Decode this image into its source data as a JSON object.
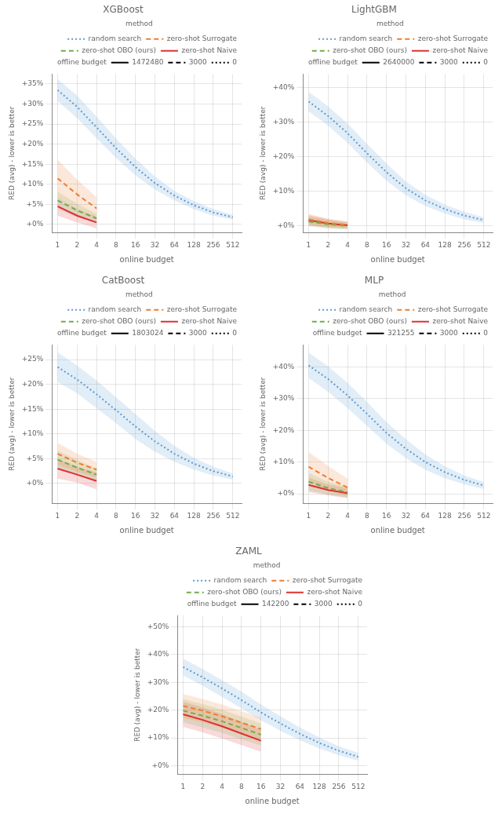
{
  "chart_data": [
    {
      "type": "line",
      "title": "XGBoost",
      "x_label": "online budget",
      "y_label": "RED (avg) - lower is better",
      "log": "x",
      "grid": true,
      "legend": "upper right",
      "legend_title": "method",
      "xlim": [
        0.82,
        700
      ],
      "xticks": [
        1,
        2,
        4,
        8,
        16,
        32,
        64,
        128,
        256,
        512
      ],
      "ylim": [
        -0.02,
        0.375
      ],
      "yticks": [
        {
          "value": 0.0,
          "label": "+0%"
        },
        {
          "value": 0.05,
          "label": "+5%"
        },
        {
          "value": 0.1,
          "label": "+10%"
        },
        {
          "value": 0.15,
          "label": "+15%"
        },
        {
          "value": 0.2,
          "label": "+20%"
        },
        {
          "value": 0.25,
          "label": "+25%"
        },
        {
          "value": 0.3,
          "label": "+30%"
        },
        {
          "value": 0.35,
          "label": "+35%"
        }
      ],
      "series": [
        {
          "name": "random search",
          "color": "#5b9bd5",
          "line_style": "dotted",
          "x": [
            1,
            2,
            4,
            8,
            16,
            32,
            64,
            128,
            256,
            512
          ],
          "values": [
            0.335,
            0.293,
            0.242,
            0.19,
            0.143,
            0.103,
            0.072,
            0.048,
            0.03,
            0.018
          ],
          "lo": [
            0.308,
            0.265,
            0.215,
            0.166,
            0.122,
            0.087,
            0.06,
            0.038,
            0.022,
            0.012
          ],
          "hi": [
            0.362,
            0.321,
            0.269,
            0.214,
            0.164,
            0.119,
            0.084,
            0.058,
            0.038,
            0.024
          ]
        },
        {
          "name": "zero-shot Surrogate",
          "color": "#ed7d31",
          "line_style": "dashed",
          "x": [
            1,
            2,
            4
          ],
          "values": [
            0.115,
            0.075,
            0.04
          ],
          "lo": [
            0.068,
            0.038,
            0.012
          ],
          "hi": [
            0.162,
            0.112,
            0.068
          ]
        },
        {
          "name": "zero-shot OBO (ours)",
          "color": "#70ad47",
          "line_style": "dashed",
          "x": [
            1,
            2,
            4
          ],
          "values": [
            0.06,
            0.035,
            0.015
          ],
          "lo": [
            0.038,
            0.018,
            0.003
          ],
          "hi": [
            0.082,
            0.052,
            0.027
          ]
        },
        {
          "name": "zero-shot Naive",
          "color": "#e03030",
          "line_style": "solid",
          "x": [
            1,
            2,
            4
          ],
          "values": [
            0.045,
            0.022,
            0.005
          ],
          "lo": [
            0.022,
            0.005,
            -0.01
          ],
          "hi": [
            0.068,
            0.039,
            0.02
          ]
        },
        {
          "name": "offline budget",
          "color": "none",
          "x": [],
          "values": []
        },
        {
          "name": "1472480",
          "color": "black",
          "line_style": "solid",
          "x": [],
          "values": []
        },
        {
          "name": "3000",
          "color": "black",
          "line_style": "dashed",
          "x": [],
          "values": []
        },
        {
          "name": "0",
          "color": "black",
          "line_style": "dotted",
          "x": [],
          "values": []
        }
      ]
    },
    {
      "type": "line",
      "title": "LightGBM",
      "x_label": "online budget",
      "y_label": "RED (avg) - lower is better",
      "log": "x",
      "grid": true,
      "legend": "upper right",
      "legend_title": "method",
      "xlim": [
        0.82,
        700
      ],
      "xticks": [
        1,
        2,
        4,
        8,
        16,
        32,
        64,
        128,
        256,
        512
      ],
      "ylim": [
        -0.02,
        0.44
      ],
      "yticks": [
        {
          "value": 0.0,
          "label": "+0%"
        },
        {
          "value": 0.1,
          "label": "+10%"
        },
        {
          "value": 0.2,
          "label": "+20%"
        },
        {
          "value": 0.3,
          "label": "+30%"
        },
        {
          "value": 0.4,
          "label": "+40%"
        }
      ],
      "series": [
        {
          "name": "random search",
          "color": "#5b9bd5",
          "line_style": "dotted",
          "x": [
            1,
            2,
            4,
            8,
            16,
            32,
            64,
            128,
            256,
            512
          ],
          "values": [
            0.36,
            0.318,
            0.268,
            0.21,
            0.155,
            0.108,
            0.073,
            0.048,
            0.029,
            0.016
          ],
          "lo": [
            0.332,
            0.29,
            0.24,
            0.183,
            0.13,
            0.088,
            0.057,
            0.035,
            0.018,
            0.008
          ],
          "hi": [
            0.388,
            0.346,
            0.296,
            0.237,
            0.18,
            0.128,
            0.089,
            0.061,
            0.04,
            0.024
          ]
        },
        {
          "name": "zero-shot Surrogate",
          "color": "#ed7d31",
          "line_style": "dashed",
          "x": [
            1,
            2,
            4
          ],
          "values": [
            0.018,
            0.008,
            0.002
          ],
          "lo": [
            0.002,
            -0.005,
            -0.008
          ],
          "hi": [
            0.034,
            0.021,
            0.012
          ]
        },
        {
          "name": "zero-shot OBO (ours)",
          "color": "#70ad47",
          "line_style": "dashed",
          "x": [
            1,
            2,
            4
          ],
          "values": [
            0.012,
            0.004,
            -0.001
          ],
          "lo": [
            -0.002,
            -0.009,
            -0.011
          ],
          "hi": [
            0.026,
            0.017,
            0.009
          ]
        },
        {
          "name": "zero-shot Naive",
          "color": "#e03030",
          "line_style": "solid",
          "x": [
            1,
            2,
            4
          ],
          "values": [
            0.016,
            0.006,
            0.001
          ],
          "lo": [
            0.001,
            -0.006,
            -0.009
          ],
          "hi": [
            0.031,
            0.018,
            0.011
          ]
        },
        {
          "name": "offline budget",
          "color": "none",
          "x": [],
          "values": []
        },
        {
          "name": "2640000",
          "color": "black",
          "line_style": "solid",
          "x": [],
          "values": []
        },
        {
          "name": "3000",
          "color": "black",
          "line_style": "dashed",
          "x": [],
          "values": []
        },
        {
          "name": "0",
          "color": "black",
          "line_style": "dotted",
          "x": [],
          "values": []
        }
      ]
    },
    {
      "type": "line",
      "title": "CatBoost",
      "x_label": "online budget",
      "y_label": "RED (avg) - lower is better",
      "log": "x",
      "grid": true,
      "legend": "upper right",
      "legend_title": "method",
      "xlim": [
        0.82,
        700
      ],
      "xticks": [
        1,
        2,
        4,
        8,
        16,
        32,
        64,
        128,
        256,
        512
      ],
      "ylim": [
        -0.04,
        0.28
      ],
      "yticks": [
        {
          "value": 0.0,
          "label": "+0%"
        },
        {
          "value": 0.05,
          "label": "+5%"
        },
        {
          "value": 0.1,
          "label": "+10%"
        },
        {
          "value": 0.15,
          "label": "+15%"
        },
        {
          "value": 0.2,
          "label": "+20%"
        },
        {
          "value": 0.25,
          "label": "+25%"
        }
      ],
      "series": [
        {
          "name": "random search",
          "color": "#5b9bd5",
          "line_style": "dotted",
          "x": [
            1,
            2,
            4,
            8,
            16,
            32,
            64,
            128,
            256,
            512
          ],
          "values": [
            0.235,
            0.21,
            0.18,
            0.148,
            0.115,
            0.085,
            0.06,
            0.04,
            0.025,
            0.014
          ],
          "lo": [
            0.205,
            0.182,
            0.152,
            0.122,
            0.09,
            0.064,
            0.044,
            0.028,
            0.016,
            0.008
          ],
          "hi": [
            0.265,
            0.238,
            0.208,
            0.174,
            0.14,
            0.106,
            0.076,
            0.052,
            0.034,
            0.02
          ]
        },
        {
          "name": "zero-shot Surrogate",
          "color": "#ed7d31",
          "line_style": "dashed",
          "x": [
            1,
            2,
            4
          ],
          "values": [
            0.06,
            0.042,
            0.028
          ],
          "lo": [
            0.038,
            0.024,
            0.012
          ],
          "hi": [
            0.082,
            0.06,
            0.044
          ]
        },
        {
          "name": "zero-shot OBO (ours)",
          "color": "#70ad47",
          "line_style": "dashed",
          "x": [
            1,
            2,
            4
          ],
          "values": [
            0.048,
            0.032,
            0.018
          ],
          "lo": [
            0.03,
            0.016,
            0.006
          ],
          "hi": [
            0.066,
            0.048,
            0.03
          ]
        },
        {
          "name": "zero-shot Naive",
          "color": "#e03030",
          "line_style": "solid",
          "x": [
            1,
            2,
            4
          ],
          "values": [
            0.03,
            0.018,
            0.005
          ],
          "lo": [
            0.01,
            0.002,
            -0.012
          ],
          "hi": [
            0.05,
            0.034,
            0.022
          ]
        },
        {
          "name": "offline budget",
          "color": "none",
          "x": [],
          "values": []
        },
        {
          "name": "1803024",
          "color": "black",
          "line_style": "solid",
          "x": [],
          "values": []
        },
        {
          "name": "3000",
          "color": "black",
          "line_style": "dashed",
          "x": [],
          "values": []
        },
        {
          "name": "0",
          "color": "black",
          "line_style": "dotted",
          "x": [],
          "values": []
        }
      ]
    },
    {
      "type": "line",
      "title": "MLP",
      "x_label": "online budget",
      "y_label": "RED (avg) - lower is better",
      "log": "x",
      "grid": true,
      "legend": "upper right",
      "legend_title": "method",
      "xlim": [
        0.82,
        700
      ],
      "xticks": [
        1,
        2,
        4,
        8,
        16,
        32,
        64,
        128,
        256,
        512
      ],
      "ylim": [
        -0.03,
        0.47
      ],
      "yticks": [
        {
          "value": 0.0,
          "label": "+0%"
        },
        {
          "value": 0.1,
          "label": "+10%"
        },
        {
          "value": 0.2,
          "label": "+20%"
        },
        {
          "value": 0.3,
          "label": "+30%"
        },
        {
          "value": 0.4,
          "label": "+40%"
        }
      ],
      "series": [
        {
          "name": "random search",
          "color": "#5b9bd5",
          "line_style": "dotted",
          "x": [
            1,
            2,
            4,
            8,
            16,
            32,
            64,
            128,
            256,
            512
          ],
          "values": [
            0.405,
            0.362,
            0.31,
            0.252,
            0.192,
            0.142,
            0.1,
            0.068,
            0.044,
            0.026
          ],
          "lo": [
            0.365,
            0.322,
            0.27,
            0.214,
            0.158,
            0.112,
            0.076,
            0.049,
            0.03,
            0.015
          ],
          "hi": [
            0.445,
            0.402,
            0.35,
            0.29,
            0.226,
            0.172,
            0.124,
            0.087,
            0.058,
            0.037
          ]
        },
        {
          "name": "zero-shot Surrogate",
          "color": "#ed7d31",
          "line_style": "dashed",
          "x": [
            1,
            2,
            4
          ],
          "values": [
            0.085,
            0.05,
            0.02
          ],
          "lo": [
            0.038,
            0.012,
            -0.008
          ],
          "hi": [
            0.132,
            0.088,
            0.048
          ]
        },
        {
          "name": "zero-shot OBO (ours)",
          "color": "#70ad47",
          "line_style": "dashed",
          "x": [
            1,
            2,
            4
          ],
          "values": [
            0.038,
            0.018,
            0.005
          ],
          "lo": [
            0.01,
            -0.002,
            -0.012
          ],
          "hi": [
            0.066,
            0.038,
            0.022
          ]
        },
        {
          "name": "zero-shot Naive",
          "color": "#e03030",
          "line_style": "solid",
          "x": [
            1,
            2,
            4
          ],
          "values": [
            0.028,
            0.012,
            0.002
          ],
          "lo": [
            0.005,
            -0.005,
            -0.014
          ],
          "hi": [
            0.051,
            0.029,
            0.018
          ]
        },
        {
          "name": "offline budget",
          "color": "none",
          "x": [],
          "values": []
        },
        {
          "name": "321255",
          "color": "black",
          "line_style": "solid",
          "x": [],
          "values": []
        },
        {
          "name": "3000",
          "color": "black",
          "line_style": "dashed",
          "x": [],
          "values": []
        },
        {
          "name": "0",
          "color": "black",
          "line_style": "dotted",
          "x": [],
          "values": []
        }
      ]
    },
    {
      "type": "line",
      "title": "ZAML",
      "x_label": "online budget",
      "y_label": "RED (avg) - lower is better",
      "log": "x",
      "grid": true,
      "legend": "upper right",
      "legend_title": "method",
      "xlim": [
        0.82,
        700
      ],
      "xticks": [
        1,
        2,
        4,
        8,
        16,
        32,
        64,
        128,
        256,
        512
      ],
      "ylim": [
        -0.03,
        0.54
      ],
      "yticks": [
        {
          "value": 0.0,
          "label": "+0%"
        },
        {
          "value": 0.1,
          "label": "+10%"
        },
        {
          "value": 0.2,
          "label": "+20%"
        },
        {
          "value": 0.3,
          "label": "+30%"
        },
        {
          "value": 0.4,
          "label": "+40%"
        },
        {
          "value": 0.5,
          "label": "+50%"
        }
      ],
      "series": [
        {
          "name": "random search",
          "color": "#5b9bd5",
          "line_style": "dotted",
          "x": [
            1,
            2,
            4,
            8,
            16,
            32,
            64,
            128,
            256,
            512
          ],
          "values": [
            0.355,
            0.318,
            0.278,
            0.236,
            0.192,
            0.152,
            0.115,
            0.082,
            0.054,
            0.032
          ],
          "lo": [
            0.325,
            0.288,
            0.248,
            0.206,
            0.164,
            0.126,
            0.092,
            0.062,
            0.038,
            0.018
          ],
          "hi": [
            0.385,
            0.348,
            0.308,
            0.266,
            0.22,
            0.178,
            0.138,
            0.102,
            0.07,
            0.046
          ]
        },
        {
          "name": "zero-shot Surrogate",
          "color": "#ed7d31",
          "line_style": "dashed",
          "x": [
            1,
            2,
            4,
            8,
            16
          ],
          "values": [
            0.215,
            0.198,
            0.178,
            0.155,
            0.132
          ],
          "lo": [
            0.172,
            0.156,
            0.136,
            0.114,
            0.092
          ],
          "hi": [
            0.258,
            0.24,
            0.22,
            0.196,
            0.172
          ]
        },
        {
          "name": "zero-shot OBO (ours)",
          "color": "#70ad47",
          "line_style": "dashed",
          "x": [
            1,
            2,
            4,
            8,
            16
          ],
          "values": [
            0.198,
            0.18,
            0.16,
            0.136,
            0.112
          ],
          "lo": [
            0.156,
            0.138,
            0.118,
            0.095,
            0.073
          ],
          "hi": [
            0.24,
            0.222,
            0.202,
            0.177,
            0.151
          ]
        },
        {
          "name": "zero-shot Naive",
          "color": "#e03030",
          "line_style": "solid",
          "x": [
            1,
            2,
            4,
            8,
            16
          ],
          "values": [
            0.185,
            0.165,
            0.142,
            0.116,
            0.09
          ],
          "lo": [
            0.14,
            0.12,
            0.098,
            0.074,
            0.05
          ],
          "hi": [
            0.23,
            0.21,
            0.186,
            0.158,
            0.13
          ]
        },
        {
          "name": "offline budget",
          "color": "none",
          "x": [],
          "values": []
        },
        {
          "name": "142200",
          "color": "black",
          "line_style": "solid",
          "x": [],
          "values": []
        },
        {
          "name": "3000",
          "color": "black",
          "line_style": "dashed",
          "x": [],
          "values": []
        },
        {
          "name": "0",
          "color": "black",
          "line_style": "dotted",
          "x": [],
          "values": []
        }
      ]
    }
  ]
}
